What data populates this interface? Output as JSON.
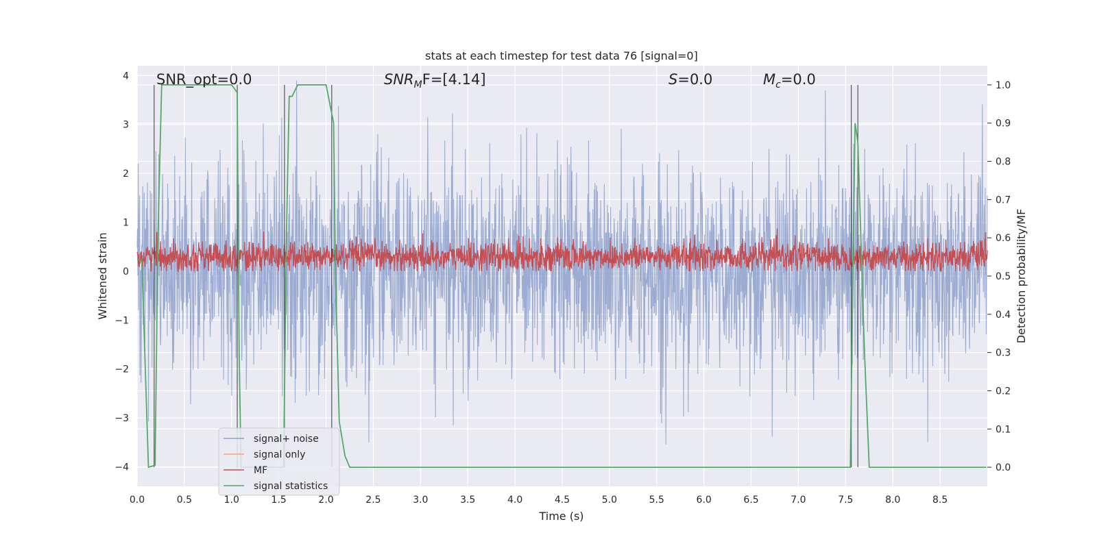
{
  "chart_data": {
    "type": "line",
    "title": "stats at each timestep for test data 76 [signal=0]",
    "xlabel": "Time (s)",
    "ylabel_left": "Whitened strain",
    "ylabel_right": "Detection probability/MF",
    "xlim": [
      0.0,
      9.0
    ],
    "ylim_left": [
      -4.4,
      4.2
    ],
    "ylim_right": [
      -0.05,
      1.05
    ],
    "x_ticks": [
      "0.0",
      "0.5",
      "1.0",
      "1.5",
      "2.0",
      "2.5",
      "3.0",
      "3.5",
      "4.0",
      "4.5",
      "5.0",
      "5.5",
      "6.0",
      "6.5",
      "7.0",
      "7.5",
      "8.0",
      "8.5"
    ],
    "x_tick_values": [
      0.0,
      0.5,
      1.0,
      1.5,
      2.0,
      2.5,
      3.0,
      3.5,
      4.0,
      4.5,
      5.0,
      5.5,
      6.0,
      6.5,
      7.0,
      7.5,
      8.0,
      8.5
    ],
    "left_ticks": [
      "−4",
      "−3",
      "−2",
      "−1",
      "0",
      "1",
      "2",
      "3",
      "4"
    ],
    "left_tick_values": [
      -4,
      -3,
      -2,
      -1,
      0,
      1,
      2,
      3,
      4
    ],
    "right_ticks": [
      "0.0",
      "0.1",
      "0.2",
      "0.3",
      "0.4",
      "0.5",
      "0.6",
      "0.7",
      "0.8",
      "0.9",
      "1.0"
    ],
    "right_tick_values": [
      0.0,
      0.1,
      0.2,
      0.3,
      0.4,
      0.5,
      0.6,
      0.7,
      0.8,
      0.9,
      1.0
    ],
    "grid": true,
    "legend_position": "lower-left",
    "series": [
      {
        "name": "signal+ noise",
        "color": "#8da0cb",
        "axis": "left",
        "description": "dense noise band roughly within −1.7 to 1.5 with spikes reaching ±3.9"
      },
      {
        "name": "signal only",
        "color": "#f4a582",
        "axis": "left",
        "values": [
          0
        ]
      },
      {
        "name": "MF",
        "color": "#c44e52",
        "axis": "left",
        "description": "noisy band around 0.3 (range 0 to 1.0)"
      },
      {
        "name": "signal statistics",
        "color": "#55a868",
        "axis": "right",
        "x": [
          0.0,
          0.05,
          0.12,
          0.19,
          0.22,
          0.26,
          0.3,
          0.4,
          1.0,
          1.06,
          1.08,
          1.1,
          1.12,
          1.2,
          1.4,
          1.55,
          1.58,
          1.61,
          1.64,
          1.7,
          2.0,
          2.08,
          2.1,
          2.14,
          2.2,
          2.25,
          2.3,
          3.0,
          4.0,
          5.0,
          6.0,
          7.0,
          7.55,
          7.6,
          7.63,
          7.7,
          7.75,
          7.8,
          8.5,
          8.99
        ],
        "values": [
          0.545,
          0.54,
          0.0,
          0.005,
          0.6,
          1.0,
          1.0,
          1.0,
          1.0,
          0.98,
          0.3,
          0.0,
          0.0,
          0.0,
          0.0,
          0.0,
          0.6,
          0.97,
          0.97,
          1.0,
          1.0,
          0.9,
          0.5,
          0.12,
          0.03,
          0.0,
          0.0,
          0.0,
          0.0,
          0.0,
          0.0,
          0.0,
          0.0,
          0.9,
          0.85,
          0.3,
          0.0,
          0.0,
          0.0,
          0.0
        ]
      }
    ],
    "event_markers_x": [
      0.18,
      1.06,
      1.56,
      2.06,
      7.56,
      7.63
    ],
    "annotations": [
      {
        "text": "SNR_opt=0.0",
        "type": "plain"
      },
      {
        "base": "SNR",
        "sub": "M",
        "rest": "F=[4.14]",
        "type": "italic_sub"
      },
      {
        "base": "S",
        "rest": "=0.0",
        "type": "italic"
      },
      {
        "base": "M",
        "sub": "c",
        "rest": "=0.0",
        "type": "italic_sub"
      }
    ]
  }
}
